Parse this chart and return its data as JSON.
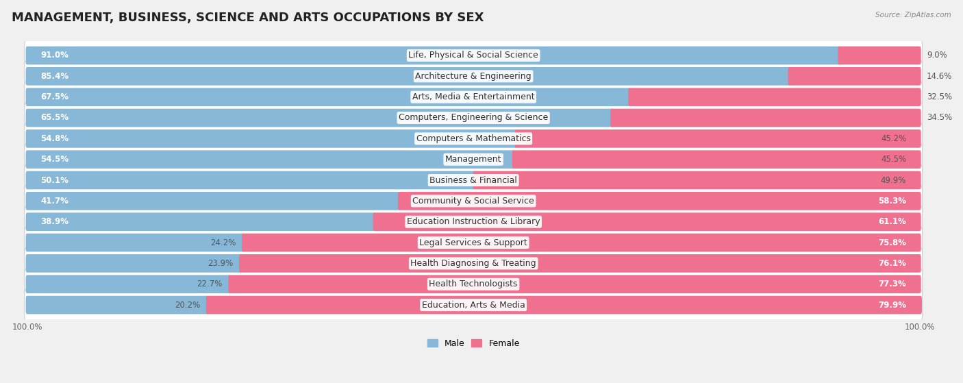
{
  "title": "MANAGEMENT, BUSINESS, SCIENCE AND ARTS OCCUPATIONS BY SEX",
  "source": "Source: ZipAtlas.com",
  "categories": [
    "Life, Physical & Social Science",
    "Architecture & Engineering",
    "Arts, Media & Entertainment",
    "Computers, Engineering & Science",
    "Computers & Mathematics",
    "Management",
    "Business & Financial",
    "Community & Social Service",
    "Education Instruction & Library",
    "Legal Services & Support",
    "Health Diagnosing & Treating",
    "Health Technologists",
    "Education, Arts & Media"
  ],
  "male_pct": [
    91.0,
    85.4,
    67.5,
    65.5,
    54.8,
    54.5,
    50.1,
    41.7,
    38.9,
    24.2,
    23.9,
    22.7,
    20.2
  ],
  "female_pct": [
    9.0,
    14.6,
    32.5,
    34.5,
    45.2,
    45.5,
    49.9,
    58.3,
    61.1,
    75.8,
    76.1,
    77.3,
    79.9
  ],
  "male_color": "#88b8d8",
  "female_color": "#f07090",
  "bar_height": 0.58,
  "background_color": "#f0f0f0",
  "row_bg_color": "#ffffff",
  "row_border_color": "#d0d0d8",
  "title_fontsize": 13,
  "cat_fontsize": 9,
  "pct_fontsize": 8.5,
  "legend_fontsize": 9,
  "axis_label_fontsize": 8.5
}
